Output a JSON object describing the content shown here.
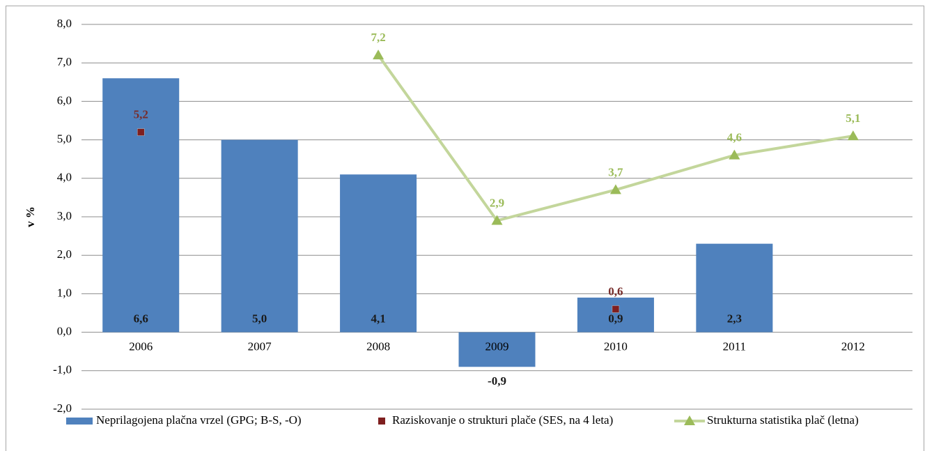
{
  "chart_data": {
    "type": "bar",
    "y_label": "v %",
    "categories": [
      "2006",
      "2007",
      "2008",
      "2009",
      "2010",
      "2011",
      "2012"
    ],
    "series": [
      {
        "name": "Neprilagojena plačna vrzel (GPG; B-S, -O)",
        "type": "bar",
        "color": "#4f81bd",
        "values": [
          6.6,
          5.0,
          4.1,
          -0.9,
          0.9,
          2.3,
          null
        ],
        "value_labels": [
          "6,6",
          "5,0",
          "4,1",
          "-0,9",
          "0,9",
          "2,3",
          null
        ],
        "label_color": "#1a1a1a"
      },
      {
        "name": "Raziskovanje o strukturi plače (SES, na 4 leta)",
        "type": "scatter",
        "color": "#7f1f1f",
        "values": [
          5.2,
          null,
          null,
          null,
          0.6,
          null,
          null
        ],
        "value_labels": [
          "5,2",
          null,
          null,
          null,
          "0,6",
          null,
          null
        ],
        "label_color": "#772c2a"
      },
      {
        "name": "Strukturna statistika plač (letna)",
        "type": "line",
        "color": "#c3d69b",
        "marker_color": "#9bbb59",
        "values": [
          null,
          null,
          7.2,
          2.9,
          3.7,
          4.6,
          5.1
        ],
        "value_labels": [
          null,
          null,
          "7,2",
          "2,9",
          "3,7",
          "4,6",
          "5,1"
        ],
        "label_color": "#9bbb59"
      }
    ],
    "ylim": [
      -2,
      8
    ],
    "yticks": [
      {
        "value": -2,
        "label": "-2,0"
      },
      {
        "value": -1,
        "label": "-1,0"
      },
      {
        "value": 0,
        "label": "0,0"
      },
      {
        "value": 1,
        "label": "1,0"
      },
      {
        "value": 2,
        "label": "2,0"
      },
      {
        "value": 3,
        "label": "3,0"
      },
      {
        "value": 4,
        "label": "4,0"
      },
      {
        "value": 5,
        "label": "5,0"
      },
      {
        "value": 6,
        "label": "6,0"
      },
      {
        "value": 7,
        "label": "7,0"
      },
      {
        "value": 8,
        "label": "8,0"
      }
    ],
    "grid": true,
    "legend": "bottom"
  }
}
